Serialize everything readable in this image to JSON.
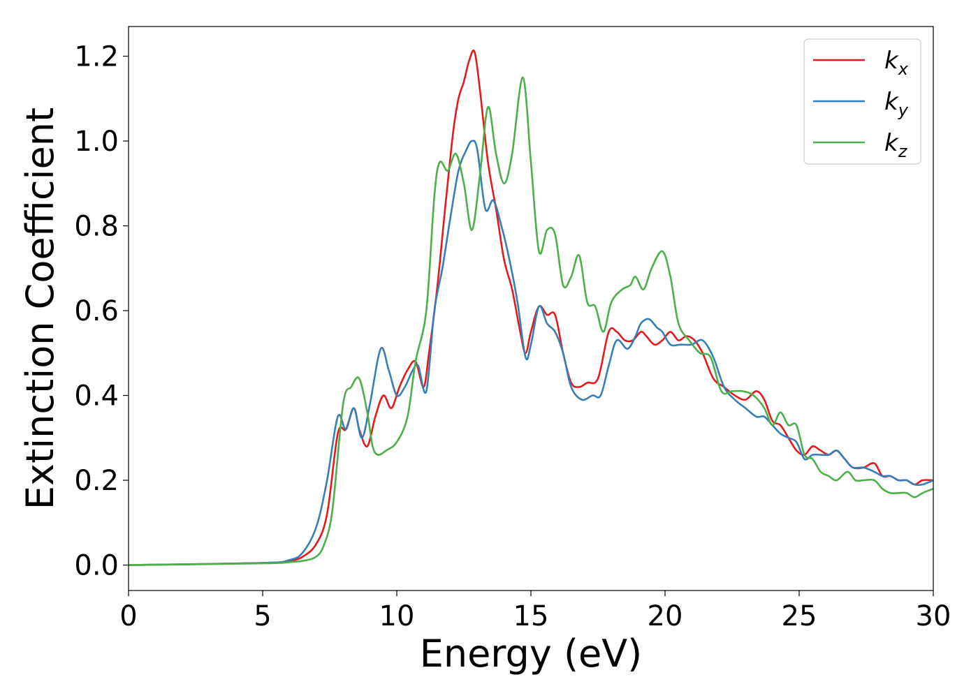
{
  "chart_data": {
    "type": "line",
    "xlabel": "Energy (eV)",
    "ylabel": "Extinction Coefficient",
    "xlim": [
      0,
      30
    ],
    "ylim": [
      -0.06,
      1.27
    ],
    "xticks": [
      "0",
      "5",
      "10",
      "15",
      "20",
      "25",
      "30"
    ],
    "yticks": [
      "0.0",
      "0.2",
      "0.4",
      "0.6",
      "0.8",
      "1.0",
      "1.2"
    ],
    "grid": false,
    "legend": "top-right",
    "series": [
      {
        "name": "k",
        "subscript": "x",
        "color": "#e41a1c",
        "x": [
          0,
          5,
          6,
          6.5,
          7,
          7.4,
          7.8,
          8.1,
          8.4,
          8.6,
          8.9,
          9.2,
          9.5,
          9.8,
          10.1,
          10.4,
          10.7,
          11,
          11.2,
          11.5,
          11.8,
          12.1,
          12.3,
          12.5,
          12.7,
          12.9,
          13.1,
          13.4,
          13.7,
          14,
          14.3,
          14.6,
          14.8,
          15,
          15.3,
          15.6,
          15.9,
          16.2,
          16.5,
          16.8,
          17.1,
          17.5,
          17.9,
          18.2,
          18.5,
          18.8,
          19.1,
          19.3,
          19.6,
          19.9,
          20.2,
          20.5,
          20.8,
          21.1,
          21.4,
          21.8,
          22.2,
          22.6,
          23,
          23.4,
          23.7,
          24,
          24.3,
          24.6,
          24.9,
          25.2,
          25.5,
          25.8,
          26.1,
          26.4,
          26.7,
          27,
          27.4,
          27.8,
          28.1,
          28.4,
          28.7,
          29,
          29.3,
          29.6,
          30
        ],
        "y": [
          0,
          0.005,
          0.01,
          0.02,
          0.05,
          0.12,
          0.31,
          0.32,
          0.37,
          0.32,
          0.28,
          0.35,
          0.4,
          0.37,
          0.42,
          0.46,
          0.48,
          0.42,
          0.5,
          0.65,
          0.84,
          1.02,
          1.1,
          1.14,
          1.19,
          1.21,
          1.12,
          0.95,
          0.84,
          0.72,
          0.65,
          0.55,
          0.5,
          0.55,
          0.61,
          0.59,
          0.59,
          0.5,
          0.43,
          0.42,
          0.43,
          0.44,
          0.55,
          0.55,
          0.53,
          0.53,
          0.55,
          0.54,
          0.52,
          0.53,
          0.55,
          0.53,
          0.54,
          0.53,
          0.5,
          0.44,
          0.42,
          0.4,
          0.39,
          0.41,
          0.39,
          0.34,
          0.33,
          0.3,
          0.27,
          0.26,
          0.28,
          0.27,
          0.26,
          0.27,
          0.25,
          0.23,
          0.23,
          0.24,
          0.21,
          0.21,
          0.2,
          0.2,
          0.19,
          0.2,
          0.2
        ]
      },
      {
        "name": "k",
        "subscript": "y",
        "color": "#377eb8",
        "x": [
          0,
          5,
          6,
          6.5,
          7,
          7.4,
          7.8,
          8.1,
          8.4,
          8.7,
          9,
          9.4,
          9.7,
          10,
          10.3,
          10.6,
          10.8,
          11.1,
          11.4,
          11.7,
          12,
          12.3,
          12.6,
          12.8,
          13,
          13.3,
          13.6,
          13.9,
          14.2,
          14.5,
          14.8,
          15,
          15.3,
          15.6,
          15.9,
          16.2,
          16.5,
          16.9,
          17.3,
          17.6,
          17.9,
          18.2,
          18.6,
          18.9,
          19.1,
          19.4,
          19.7,
          19.9,
          20.2,
          20.6,
          21,
          21.4,
          21.8,
          22.2,
          22.6,
          23,
          23.4,
          23.7,
          24,
          24.3,
          24.6,
          24.9,
          25.2,
          25.5,
          25.8,
          26.1,
          26.4,
          26.7,
          27,
          27.4,
          27.8,
          28.1,
          28.4,
          28.7,
          29,
          29.3,
          29.6,
          30
        ],
        "y": [
          0,
          0.005,
          0.012,
          0.03,
          0.09,
          0.2,
          0.35,
          0.32,
          0.37,
          0.3,
          0.38,
          0.51,
          0.46,
          0.4,
          0.42,
          0.46,
          0.47,
          0.41,
          0.6,
          0.7,
          0.82,
          0.93,
          0.98,
          1.0,
          0.98,
          0.84,
          0.86,
          0.8,
          0.72,
          0.62,
          0.49,
          0.52,
          0.61,
          0.57,
          0.55,
          0.5,
          0.42,
          0.39,
          0.4,
          0.4,
          0.47,
          0.53,
          0.51,
          0.54,
          0.57,
          0.58,
          0.56,
          0.55,
          0.52,
          0.52,
          0.52,
          0.53,
          0.49,
          0.42,
          0.39,
          0.37,
          0.35,
          0.35,
          0.33,
          0.31,
          0.3,
          0.29,
          0.25,
          0.26,
          0.26,
          0.26,
          0.27,
          0.25,
          0.23,
          0.23,
          0.22,
          0.21,
          0.21,
          0.2,
          0.2,
          0.19,
          0.19,
          0.2
        ]
      },
      {
        "name": "k",
        "subscript": "z",
        "color": "#4daf4a",
        "x": [
          0,
          5,
          6,
          6.5,
          7,
          7.3,
          7.6,
          8,
          8.3,
          8.6,
          8.9,
          9.1,
          9.3,
          9.6,
          10,
          10.4,
          10.7,
          11.1,
          11.4,
          11.6,
          11.9,
          12.2,
          12.5,
          12.8,
          13.1,
          13.4,
          13.7,
          14,
          14.3,
          14.7,
          15,
          15.3,
          15.6,
          15.9,
          16.2,
          16.5,
          16.8,
          17.1,
          17.4,
          17.7,
          18,
          18.4,
          18.7,
          18.9,
          19.2,
          19.5,
          19.9,
          20.2,
          20.5,
          20.9,
          21.3,
          21.7,
          22.1,
          22.5,
          22.9,
          23.3,
          23.7,
          24,
          24.3,
          24.6,
          24.9,
          25.2,
          25.5,
          25.8,
          26.1,
          26.4,
          26.8,
          27.1,
          27.4,
          27.8,
          28.1,
          28.4,
          28.7,
          29,
          29.3,
          29.6,
          30
        ],
        "y": [
          0,
          0.004,
          0.007,
          0.01,
          0.02,
          0.05,
          0.13,
          0.38,
          0.42,
          0.44,
          0.36,
          0.28,
          0.26,
          0.27,
          0.29,
          0.35,
          0.48,
          0.6,
          0.87,
          0.95,
          0.93,
          0.97,
          0.9,
          0.79,
          0.92,
          1.08,
          0.97,
          0.9,
          0.97,
          1.15,
          0.95,
          0.74,
          0.79,
          0.78,
          0.66,
          0.68,
          0.73,
          0.62,
          0.61,
          0.55,
          0.62,
          0.65,
          0.66,
          0.68,
          0.65,
          0.7,
          0.74,
          0.68,
          0.57,
          0.53,
          0.5,
          0.49,
          0.41,
          0.41,
          0.41,
          0.4,
          0.37,
          0.33,
          0.36,
          0.33,
          0.33,
          0.26,
          0.25,
          0.22,
          0.21,
          0.2,
          0.22,
          0.2,
          0.2,
          0.2,
          0.18,
          0.17,
          0.17,
          0.17,
          0.16,
          0.17,
          0.18
        ]
      }
    ]
  }
}
